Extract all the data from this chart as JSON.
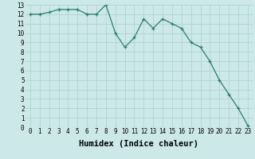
{
  "x": [
    0,
    1,
    2,
    3,
    4,
    5,
    6,
    7,
    8,
    9,
    10,
    11,
    12,
    13,
    14,
    15,
    16,
    17,
    18,
    19,
    20,
    21,
    22,
    23
  ],
  "y": [
    12.0,
    12.0,
    12.2,
    12.5,
    12.5,
    12.5,
    12.0,
    12.0,
    13.0,
    10.0,
    8.5,
    9.5,
    11.5,
    10.5,
    11.5,
    11.0,
    10.5,
    9.0,
    8.5,
    7.0,
    5.0,
    3.5,
    2.0,
    0.2
  ],
  "xlabel": "Humidex (Indice chaleur)",
  "xlim_min": -0.5,
  "xlim_max": 23.5,
  "ylim_min": 0,
  "ylim_max": 13,
  "xticks": [
    0,
    1,
    2,
    3,
    4,
    5,
    6,
    7,
    8,
    9,
    10,
    11,
    12,
    13,
    14,
    15,
    16,
    17,
    18,
    19,
    20,
    21,
    22,
    23
  ],
  "yticks": [
    0,
    1,
    2,
    3,
    4,
    5,
    6,
    7,
    8,
    9,
    10,
    11,
    12,
    13
  ],
  "line_color": "#2e7d6e",
  "marker": "+",
  "bg_color": "#cce8e8",
  "grid_color": "#aad0d0",
  "tick_fontsize": 5.5,
  "xlabel_fontsize": 7.5,
  "linewidth": 0.9,
  "markersize": 3.5,
  "markeredgewidth": 0.9
}
